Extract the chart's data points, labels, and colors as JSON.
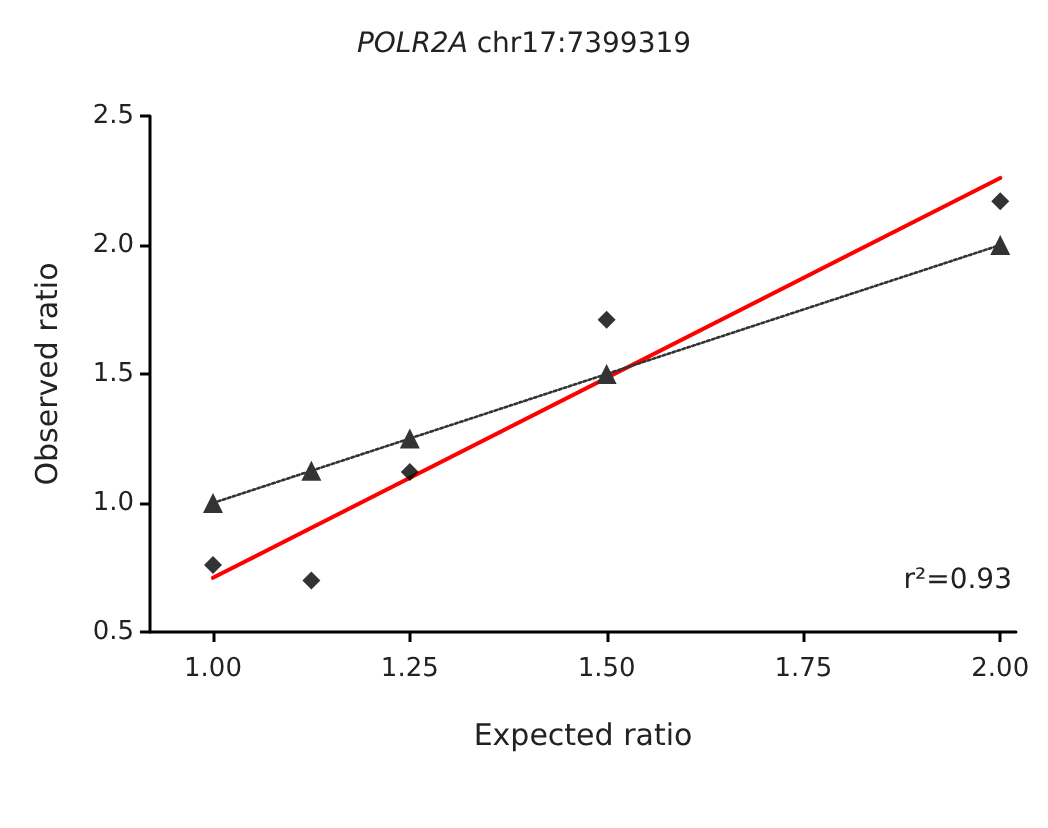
{
  "chart_data": {
    "type": "scatter",
    "title": "POLR2A chr17:7399319",
    "xlabel": "Expected ratio",
    "ylabel": "Observed ratio",
    "annotations": [
      "r²=0.93"
    ],
    "x": [
      1.0,
      1.125,
      1.25,
      1.5,
      2.0
    ],
    "series": [
      {
        "color": "#000000",
        "marker": "diamond",
        "values": [
          0.76,
          0.7,
          1.12,
          1.71,
          2.17
        ]
      },
      {
        "type": "line",
        "color": "#333333",
        "marker": "triangle",
        "line_style": "dotted",
        "values": [
          1.0,
          1.125,
          1.25,
          1.5,
          2.0
        ]
      },
      {
        "type": "line",
        "color": "#ff0000",
        "marker": "none",
        "line_style": "solid",
        "x": [
          1.0,
          2.0
        ],
        "values": [
          0.71,
          2.26
        ]
      }
    ],
    "xlim": [
      0.92,
      2.02
    ],
    "ylim": [
      0.5,
      2.5
    ],
    "xticks": [
      {
        "value": 1.0,
        "label": "1.00"
      },
      {
        "value": 1.25,
        "label": "1.25"
      },
      {
        "value": 1.5,
        "label": "1.50"
      },
      {
        "value": 1.75,
        "label": "1.75"
      },
      {
        "value": 2.0,
        "label": "2.00"
      }
    ],
    "yticks": [
      {
        "value": 0.5,
        "label": "0.5"
      },
      {
        "value": 1.0,
        "label": "1.0"
      },
      {
        "value": 1.5,
        "label": "1.5"
      },
      {
        "value": 2.0,
        "label": "2.0"
      },
      {
        "value": 2.5,
        "label": "2.5"
      }
    ],
    "grid": false
  }
}
